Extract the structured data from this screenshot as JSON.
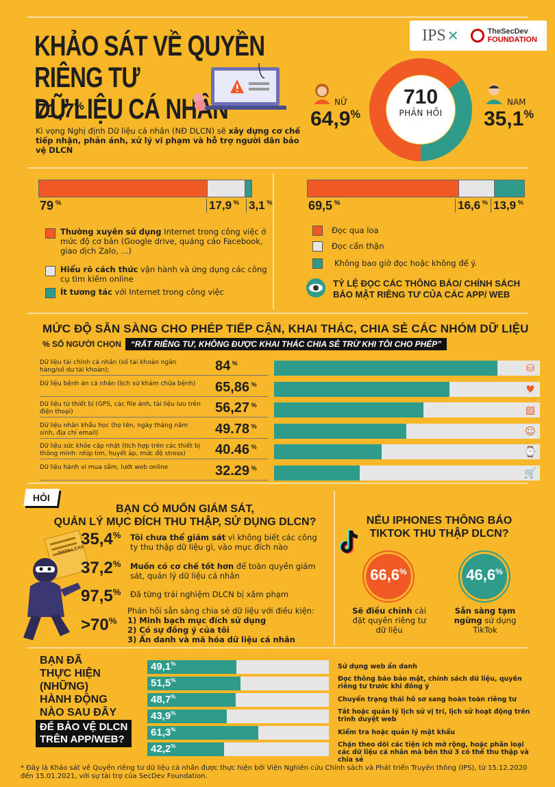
{
  "header": {
    "title_line1": "KHẢO SÁT VỀ QUYỀN RIÊNG TƯ",
    "title_line2": "DỮ LIỆU CÁ NHÂN",
    "logo_ips": "IPS",
    "logo_secdev_line1": "TheSecDev",
    "logo_secdev_line2": "FOUNDATION"
  },
  "intro": {
    "pct_value": "71,7",
    "pct_unit": "%",
    "text_prefix": "Kì vọng Nghị định Dữ liệu cá nhân (NĐ DLCN) sẽ ",
    "text_bold": "xây dựng cơ chế tiếp nhận, phản ánh, xử lý vi phạm và hỗ trợ người dân bảo vệ DLCN"
  },
  "respondents": {
    "total": "710",
    "total_label": "PHẢN HỒI",
    "female_label": "NỮ",
    "female_pct": "64,9",
    "male_label": "NAM",
    "male_pct": "35,1",
    "unit": "%",
    "female_share": 0.649,
    "female_color": "#f15a24",
    "male_color": "#2f9c8b"
  },
  "internet_use": {
    "values": [
      79,
      17.9,
      3.1
    ],
    "labels": [
      "79",
      "17,9",
      "3,1"
    ],
    "unit": "%",
    "colors": [
      "#f15a24",
      "#e6e6e6",
      "#2f9c8b"
    ],
    "legend": [
      {
        "bold": "Thường xuyên sử dụng",
        "text": " Internet trong công việc ở mức độ cơ bản (Google drive, quảng cáo Facebook, giao dịch Zalo, ...)"
      },
      {
        "bold": "Hiểu rõ cách thức",
        "text": " vận hành và ứng dụng các công cụ tìm kiếm online"
      },
      {
        "bold": "Ít tương tác",
        "text": " với Internet trong công việc"
      }
    ]
  },
  "privacy_policy": {
    "values": [
      69.5,
      16.6,
      13.9
    ],
    "labels": [
      "69,5",
      "16,6",
      "13,9"
    ],
    "unit": "%",
    "colors": [
      "#f15a24",
      "#e6e6e6",
      "#2f9c8b"
    ],
    "legend": [
      "Đọc qua loa",
      "Đọc cẩn thận",
      "Không bao giờ đọc hoặc không để ý."
    ],
    "caption_line1": "TỶ LỆ ĐỌC CÁC THÔNG BÁO/ CHÍNH SÁCH",
    "caption_line2": "BẢO MẬT RIÊNG TƯ CỦA CÁC APP/ WEB",
    "icon": "eye-icon"
  },
  "data_groups": {
    "title": "MỨC ĐỘ SẴN SÀNG CHO PHÉP TIẾP CẬN, KHAI THÁC, CHIA SẺ CÁC NHÓM DỮ LIỆU",
    "subtitle_prefix": "% SỐ NGƯỜI CHỌN",
    "subtitle_quote": "“RẤT RIÊNG TƯ, KHÔNG ĐƯỢC KHAI THÁC CHIA SẺ TRỪ KHI TÔI CHO PHÉP”",
    "unit": "%",
    "rows": [
      {
        "label": "Dữ liệu tài chính cá nhân (số tài khoản ngân hàng/số dư tài khoản);",
        "value": 84,
        "value_text": "84",
        "icon": "coins-icon"
      },
      {
        "label": "Dữ liệu bệnh án cá nhân (lịch sử khám chữa bệnh)",
        "value": 65.86,
        "value_text": "65,86",
        "icon": "heart-icon"
      },
      {
        "label": "Dữ liệu từ thiết bị (GPS, các file ảnh, tài liệu lưu trên điện thoại)",
        "value": 56.27,
        "value_text": "56,27",
        "icon": "picture-icon"
      },
      {
        "label": "Dữ liệu nhân khẩu học (họ tên, ngày tháng năm sinh, địa chỉ email)",
        "value": 49.78,
        "value_text": "49.78",
        "icon": "person-icon"
      },
      {
        "label": "Dữ liệu sức khỏe cập nhật (tích hợp trên các thiết bị thông minh: nhịp tim, huyết áp, mức độ stress)",
        "value": 40.46,
        "value_text": "40.46",
        "icon": "smartwatch-icon"
      },
      {
        "label": "Dữ liệu hành vi mua sắm, lướt web online",
        "value": 32.29,
        "value_text": "32.29",
        "icon": "shopping-cart-icon"
      }
    ]
  },
  "monitoring": {
    "badge": "HỎI",
    "question_line1": "BẠN CÓ MUỐN GIÁM SÁT,",
    "question_line2": "QUẢN LÝ MỤC ĐÍCH THU THẬP, SỬ DỤNG DLCN?",
    "items": [
      {
        "pct": "35,4",
        "unit": "%",
        "bold": "Tôi chưa thể giám sát",
        "text": " vì không biết các công ty thu thập dữ liệu gì, vào mục đích nào"
      },
      {
        "pct": "37,2",
        "unit": "%",
        "bold": "Muốn có cơ chế tốt hơn",
        "text": " để toàn quyền giám sát, quản lý dữ liệu cá nhân"
      },
      {
        "pct": "97,5",
        "unit": "%",
        "bold": "",
        "text": "Đã từng trải nghiệm DLCN bị xâm phạm"
      }
    ],
    "share_pct": ">70",
    "share_unit": "%",
    "share_intro": "Phản hồi sẵn sàng chia sẻ dữ liệu với điều kiện:",
    "share_conditions": [
      "1) Minh bạch mục đích sử dụng",
      "2) Có sự đồng ý của tôi",
      "3) Ẩn danh và mã hóa dữ liệu cá nhân"
    ],
    "hacker_sign_lines": [
      "DATA LEAK"
    ]
  },
  "tiktok": {
    "question_line1": "NẾU IPHONES THÔNG BÁO",
    "question_line2": "TIKTOK THU THẬP DLCN?",
    "left_value": "66,6",
    "left_unit": "%",
    "left_bold": "Sẽ điều chỉnh",
    "left_text": " cài đặt quyền riêng tư dữ liệu",
    "right_value": "46,6",
    "right_unit": "%",
    "right_bold": "Sẵn sàng tạm ngừng",
    "right_text": " sử dụng TikTok",
    "left_color": "#f15a24",
    "right_color": "#2f9c8b",
    "icon": "tiktok-icon"
  },
  "actions": {
    "question_lines": [
      "BẠN ĐÃ",
      "THỰC HIỆN",
      "(NHỮNG)",
      "HÀNH ĐỘNG",
      "NÀO SAU ĐÂY"
    ],
    "highlight_lines": [
      "ĐỂ BẢO VỆ DLCN",
      "TRÊN APP/WEB?"
    ],
    "unit": "%",
    "rows": [
      {
        "value": 49.1,
        "value_text": "49,1",
        "label": "Sử dụng web ẩn danh"
      },
      {
        "value": 51.5,
        "value_text": "51,5",
        "label": "Đọc thông báo bảo mật, chính sách dữ liệu, quyền riêng tư trước khi đồng ý"
      },
      {
        "value": 48.7,
        "value_text": "48,7",
        "label": "Chuyển trạng thái hồ sơ sang hoàn toàn riêng tư"
      },
      {
        "value": 43.9,
        "value_text": "43,9",
        "label": "Tắt hoặc quản lý lịch sử vị trí, lịch sử hoạt động trên trình duyệt web"
      },
      {
        "value": 61.3,
        "value_text": "61,3",
        "label": "Kiểm tra hoặc quản lý mật khẩu"
      },
      {
        "value": 42.2,
        "value_text": "42,2",
        "label": "Chặn theo dõi các tiện ích mở rộng, hoặc phân loại các dữ liệu cá nhân mà bên thứ 3 có thể thu thập và chia sẻ"
      }
    ]
  },
  "footnote": "* Đây là Khảo sát về Quyền riêng tư dữ liệu cá nhân được thực hiện bởi Viện Nghiên cứu Chính sách và Phát triển Truyền thông (IPS), từ 15.12.2020 đến 15.01.2021, với sự tài trợ của SecDev Foundation."
}
